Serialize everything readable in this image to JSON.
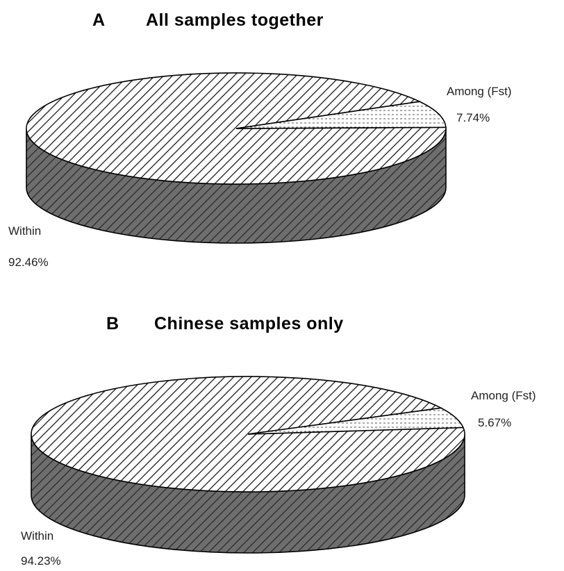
{
  "chart_data": [
    {
      "type": "pie",
      "panel": "A",
      "title": "All samples together",
      "slices": [
        {
          "label": "Within",
          "value": 92.46,
          "value_label": "92.46%"
        },
        {
          "label": "Among (Fst)",
          "value": 7.74,
          "value_label": "7.74%"
        }
      ],
      "style": "3d",
      "legend": "none"
    },
    {
      "type": "pie",
      "panel": "B",
      "title": "Chinese samples only",
      "slices": [
        {
          "label": "Within",
          "value": 94.23,
          "value_label": "94.23%"
        },
        {
          "label": "Among (Fst)",
          "value": 5.67,
          "value_label": "5.67%"
        }
      ],
      "style": "3d",
      "legend": "none"
    }
  ],
  "colors": {
    "background": "#ffffff",
    "hatch_line": "#000000",
    "side_fill": "#6e6e6e",
    "outline": "#000000"
  }
}
